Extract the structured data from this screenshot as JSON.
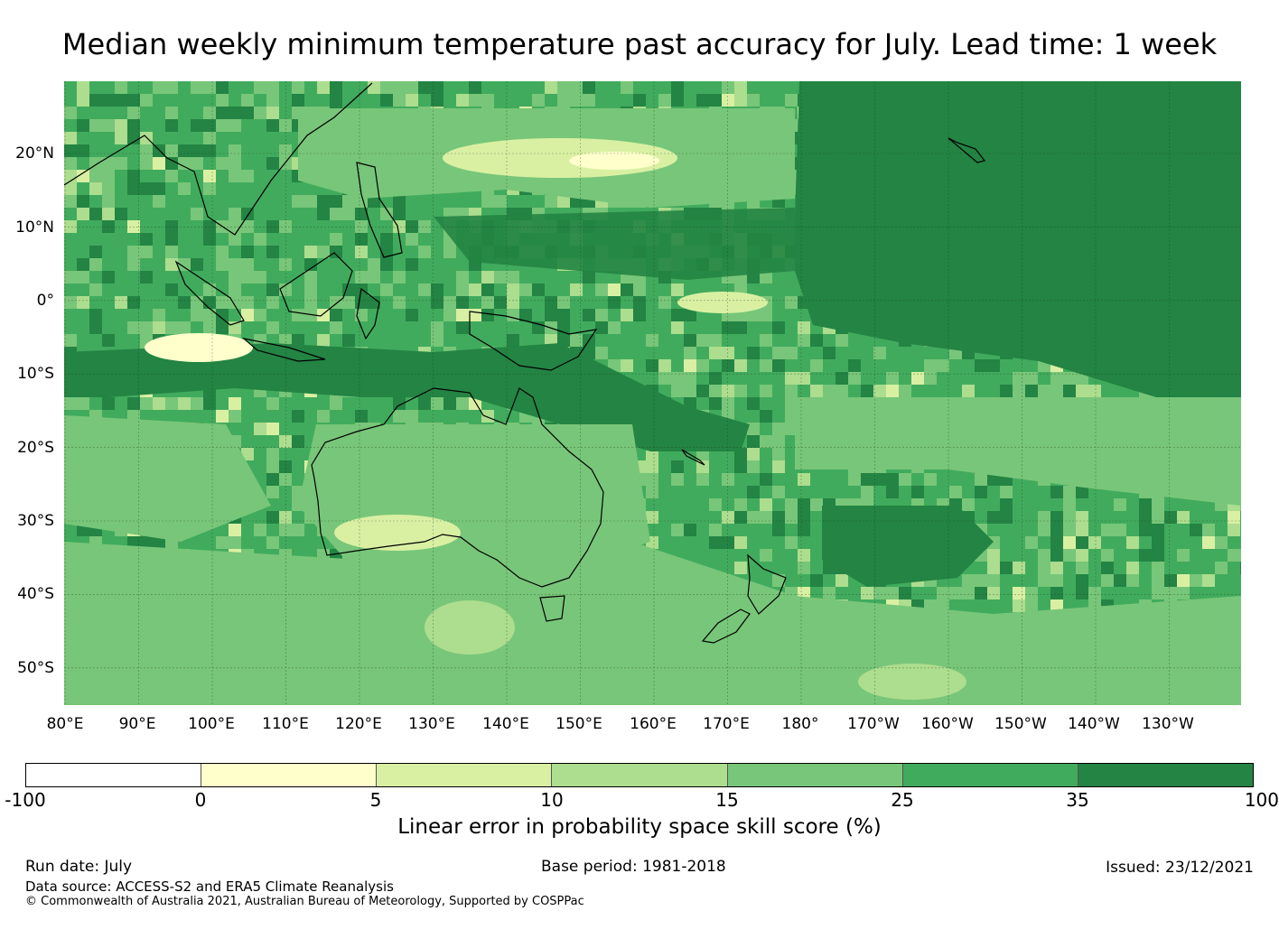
{
  "title": "Median weekly minimum temperature past accuracy for July. Lead time: 1 week",
  "map": {
    "lat_labels": [
      "20°N",
      "10°N",
      "0°",
      "10°S",
      "20°S",
      "30°S",
      "40°S",
      "50°S"
    ],
    "lon_labels": [
      "80°E",
      "90°E",
      "100°E",
      "110°E",
      "120°E",
      "130°E",
      "140°E",
      "150°E",
      "160°E",
      "170°E",
      "180°",
      "170°W",
      "160°W",
      "150°W",
      "140°W",
      "130°W"
    ],
    "region": "80°E to 120°W, 30°N to 55°S"
  },
  "legend": {
    "label": "Linear error in probability space skill score (%)",
    "ticks": [
      "-100",
      "0",
      "5",
      "10",
      "15",
      "25",
      "35",
      "100"
    ],
    "colors": [
      "#ffffff",
      "#ffffcc",
      "#d9f0a3",
      "#addd8e",
      "#78c679",
      "#41ab5d",
      "#238443"
    ]
  },
  "footer": {
    "run_date": "Run date: July",
    "base_period": "Base period: 1981-2018",
    "issued": "Issued: 23/12/2021",
    "data_source": "Data source: ACCESS-S2 and ERA5 Climate Reanalysis",
    "copyright": "© Commonwealth of Australia 2021, Australian Bureau of Meteorology, Supported by COSPPac"
  }
}
